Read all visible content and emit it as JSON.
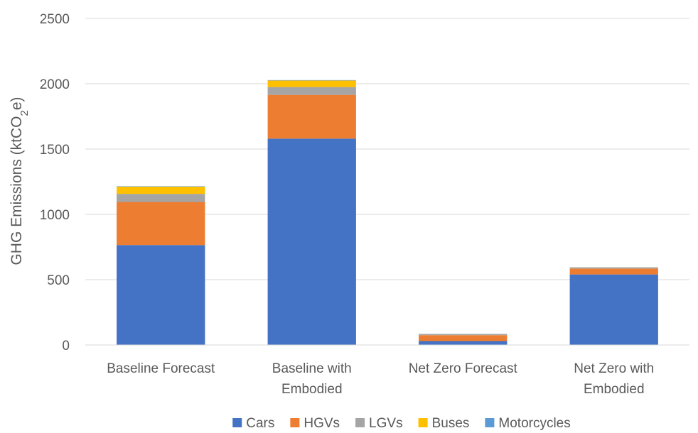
{
  "chart_data": {
    "type": "bar",
    "stacked": true,
    "title": "",
    "xlabel": "",
    "ylabel_main": "GHG Emissions (ktCO",
    "ylabel_sub": "2",
    "ylabel_tail": "e)",
    "ylim": [
      0,
      2500
    ],
    "yticks": [
      0,
      500,
      1000,
      1500,
      2000,
      2500
    ],
    "grid": true,
    "legend_position": "bottom",
    "categories": [
      [
        "Baseline Forecast"
      ],
      [
        "Baseline with",
        "Embodied"
      ],
      [
        "Net Zero Forecast"
      ],
      [
        "Net Zero with",
        "Embodied"
      ]
    ],
    "series": [
      {
        "name": "Cars",
        "color": "#4472C4",
        "values": [
          765,
          1580,
          30,
          540
        ]
      },
      {
        "name": "HGVs",
        "color": "#ED7D31",
        "values": [
          330,
          335,
          45,
          45
        ]
      },
      {
        "name": "LGVs",
        "color": "#A5A5A5",
        "values": [
          62,
          60,
          10,
          10
        ]
      },
      {
        "name": "Buses",
        "color": "#FFC000",
        "values": [
          55,
          50,
          0,
          0
        ]
      },
      {
        "name": "Motorcycles",
        "color": "#5B9BD5",
        "values": [
          3,
          3,
          0,
          0
        ]
      }
    ]
  }
}
